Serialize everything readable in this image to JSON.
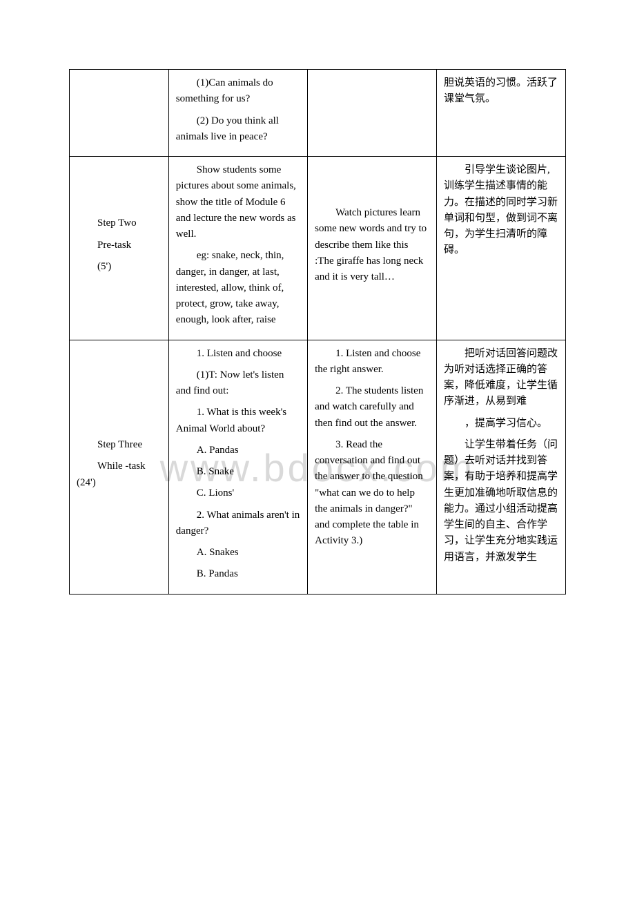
{
  "watermark": "www.bdocx.com",
  "table": {
    "border_color": "#000000",
    "background": "#ffffff",
    "text_color": "#000000",
    "font_size": 15,
    "columns": [
      "step",
      "teacher_activity",
      "student_activity",
      "purpose"
    ],
    "column_widths_pct": [
      20,
      28,
      26,
      26
    ],
    "rows": [
      {
        "col1": [],
        "col2": [
          "(1)Can animals do something for us?",
          "(2) Do you think all animals live in peace?"
        ],
        "col3": [],
        "col4": [
          "胆说英语的习惯。活跃了课堂气氛。"
        ]
      },
      {
        "col1": [
          "Step Two",
          "Pre-task",
          "(5')"
        ],
        "col2": [
          "Show students some pictures about some animals, show the title of Module 6 and lecture the new words as well.",
          "eg: snake, neck, thin, danger, in danger, at last, interested, allow, think of, protect, grow, take away, enough, look after, raise"
        ],
        "col3": [
          "Watch pictures learn some new words and try to describe them like this :The giraffe has long neck and it is very tall…"
        ],
        "col4": [
          "引导学生谈论图片,训练学生描述事情的能力。在描述的同时学习新单词和句型，做到词不离句，为学生扫清听的障碍。"
        ]
      },
      {
        "col1": [
          "Step Three",
          "While -task (24')"
        ],
        "col2": [
          "1. Listen and choose",
          "(1)T: Now let's listen and find out:",
          "1. What is this week's Animal World about?",
          "A. Pandas",
          "B. Snake",
          "C. Lions'",
          "2. What animals aren't in danger?",
          "A. Snakes",
          "B. Pandas"
        ],
        "col3": [
          "1. Listen and choose the right answer.",
          "",
          "2. The students listen and watch carefully and then find out the answer.",
          "",
          "3. Read the conversation and find out the answer to the question \"what can we do to help the animals in danger?\" and complete the table in Activity 3.)"
        ],
        "col4": [
          "把听对话回答问题改为听对话选择正确的答案，降低难度，让学生循序渐进，从易到难",
          "，提高学习信心。",
          "让学生带着任务（问题）去听对话并找到答案，有助于培养和提高学生更加准确地听取信息的能力。通过小组活动提高学生间的自主、合作学习，让学生充分地实践运用语言，并激发学生"
        ]
      }
    ]
  }
}
